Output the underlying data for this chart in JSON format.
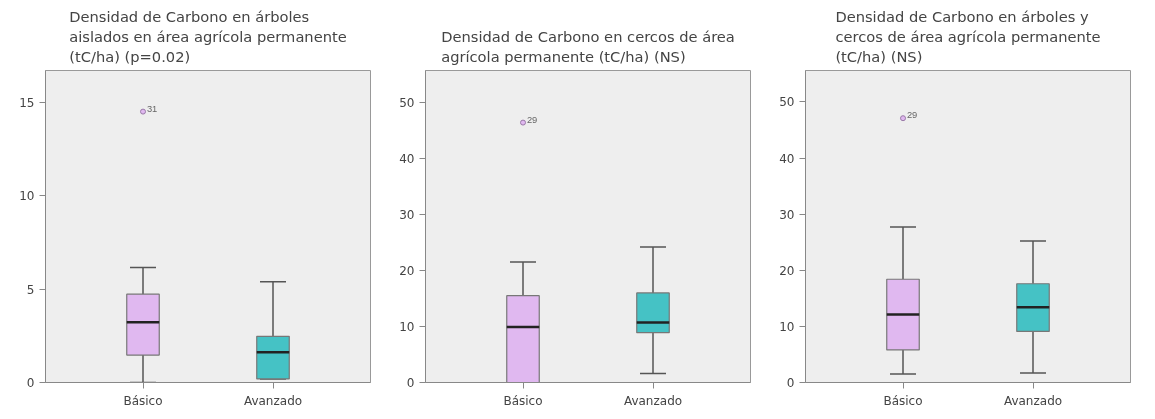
{
  "chart_data": [
    {
      "type": "box",
      "title": "Densidad de Carbono en árboles aislados en área agrícola permanente (tC/ha) (p=0.02)",
      "categories": [
        "Básico",
        "Avanzado"
      ],
      "colors": [
        "#e0b8f0",
        "#45c2c5"
      ],
      "ylim": [
        0,
        16.7
      ],
      "yticks": [
        0,
        5,
        10,
        15
      ],
      "grid": false,
      "boxes": [
        {
          "low": 0,
          "q1": 1.47,
          "median": 3.22,
          "q3": 4.73,
          "high": 6.15,
          "outliers": [
            14.5
          ]
        },
        {
          "low": 0.19,
          "q1": 0.19,
          "median": 1.62,
          "q3": 2.47,
          "high": 5.39
        }
      ],
      "annotations": [
        "31"
      ]
    },
    {
      "type": "box",
      "title": "Densidad de Carbono en cercos de área agrícola permanente (tC/ha) (NS)",
      "categories": [
        "Básico",
        "Avanzado"
      ],
      "colors": [
        "#e0b8f0",
        "#45c2c5"
      ],
      "ylim": [
        0,
        55.7
      ],
      "yticks": [
        0,
        10,
        20,
        30,
        40,
        50
      ],
      "grid": false,
      "boxes": [
        {
          "low": 0,
          "q1": 0,
          "median": 9.9,
          "q3": 15.5,
          "high": 21.5,
          "outliers": [
            46.4
          ]
        },
        {
          "low": 1.6,
          "q1": 8.9,
          "median": 10.7,
          "q3": 16.0,
          "high": 24.2
        }
      ],
      "annotations": [
        "29"
      ]
    },
    {
      "type": "box",
      "title": "Densidad de Carbono en árboles y cercos de área agrícola permanente (tC/ha) (NS)",
      "categories": [
        "Básico",
        "Avanzado"
      ],
      "colors": [
        "#e0b8f0",
        "#45c2c5"
      ],
      "ylim": [
        0,
        55.6
      ],
      "yticks": [
        0,
        10,
        20,
        30,
        40,
        50
      ],
      "grid": false,
      "boxes": [
        {
          "low": 1.5,
          "q1": 5.8,
          "median": 12.1,
          "q3": 18.4,
          "high": 27.7,
          "outliers": [
            47.1
          ]
        },
        {
          "low": 1.7,
          "q1": 9.1,
          "median": 13.4,
          "q3": 17.6,
          "high": 25.2
        }
      ],
      "annotations": [
        "29"
      ]
    }
  ]
}
